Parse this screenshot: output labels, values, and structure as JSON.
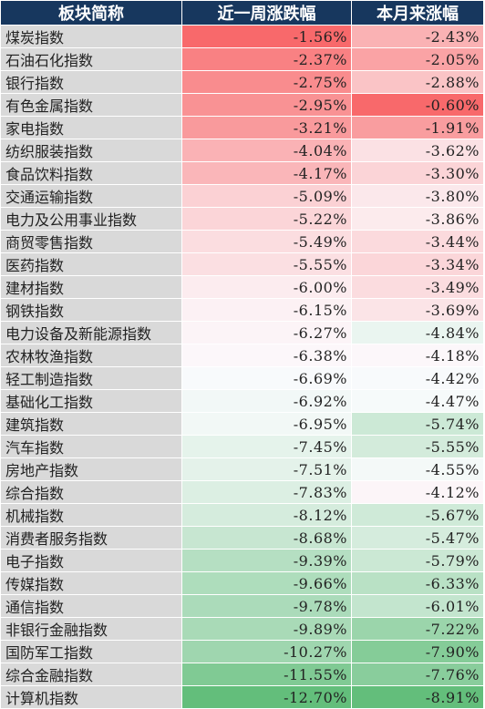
{
  "table": {
    "header_color": "#17375e",
    "name_col_bg": "#d9d9d9",
    "headers": [
      "板块简称",
      "近一周涨跌幅",
      "本月来涨幅"
    ],
    "rows": [
      {
        "name": "煤炭指数",
        "week": "-1.56%",
        "month": "-2.43%",
        "week_val": -1.56,
        "month_val": -2.43
      },
      {
        "name": "石油石化指数",
        "week": "-2.37%",
        "month": "-2.05%",
        "week_val": -2.37,
        "month_val": -2.05
      },
      {
        "name": "银行指数",
        "week": "-2.75%",
        "month": "-2.88%",
        "week_val": -2.75,
        "month_val": -2.88
      },
      {
        "name": "有色金属指数",
        "week": "-2.95%",
        "month": "-0.60%",
        "week_val": -2.95,
        "month_val": -0.6
      },
      {
        "name": "家电指数",
        "week": "-3.21%",
        "month": "-1.91%",
        "week_val": -3.21,
        "month_val": -1.91
      },
      {
        "name": "纺织服装指数",
        "week": "-4.04%",
        "month": "-3.62%",
        "week_val": -4.04,
        "month_val": -3.62
      },
      {
        "name": "食品饮料指数",
        "week": "-4.17%",
        "month": "-3.30%",
        "week_val": -4.17,
        "month_val": -3.3
      },
      {
        "name": "交通运输指数",
        "week": "-5.09%",
        "month": "-3.80%",
        "week_val": -5.09,
        "month_val": -3.8
      },
      {
        "name": "电力及公用事业指数",
        "week": "-5.22%",
        "month": "-3.86%",
        "week_val": -5.22,
        "month_val": -3.86
      },
      {
        "name": "商贸零售指数",
        "week": "-5.49%",
        "month": "-3.44%",
        "week_val": -5.49,
        "month_val": -3.44
      },
      {
        "name": "医药指数",
        "week": "-5.55%",
        "month": "-3.34%",
        "week_val": -5.55,
        "month_val": -3.34
      },
      {
        "name": "建材指数",
        "week": "-6.00%",
        "month": "-3.49%",
        "week_val": -6.0,
        "month_val": -3.49
      },
      {
        "name": "钢铁指数",
        "week": "-6.15%",
        "month": "-3.69%",
        "week_val": -6.15,
        "month_val": -3.69
      },
      {
        "name": "电力设备及新能源指数",
        "week": "-6.27%",
        "month": "-4.84%",
        "week_val": -6.27,
        "month_val": -4.84
      },
      {
        "name": "农林牧渔指数",
        "week": "-6.38%",
        "month": "-4.18%",
        "week_val": -6.38,
        "month_val": -4.18
      },
      {
        "name": "轻工制造指数",
        "week": "-6.69%",
        "month": "-4.42%",
        "week_val": -6.69,
        "month_val": -4.42
      },
      {
        "name": "基础化工指数",
        "week": "-6.92%",
        "month": "-4.47%",
        "week_val": -6.92,
        "month_val": -4.47
      },
      {
        "name": "建筑指数",
        "week": "-6.95%",
        "month": "-5.74%",
        "week_val": -6.95,
        "month_val": -5.74
      },
      {
        "name": "汽车指数",
        "week": "-7.45%",
        "month": "-5.55%",
        "week_val": -7.45,
        "month_val": -5.55
      },
      {
        "name": "房地产指数",
        "week": "-7.51%",
        "month": "-4.55%",
        "week_val": -7.51,
        "month_val": -4.55
      },
      {
        "name": "综合指数",
        "week": "-7.83%",
        "month": "-4.12%",
        "week_val": -7.83,
        "month_val": -4.12
      },
      {
        "name": "机械指数",
        "week": "-8.12%",
        "month": "-5.67%",
        "week_val": -8.12,
        "month_val": -5.67
      },
      {
        "name": "消费者服务指数",
        "week": "-8.68%",
        "month": "-5.47%",
        "week_val": -8.68,
        "month_val": -5.47
      },
      {
        "name": "电子指数",
        "week": "-9.39%",
        "month": "-5.79%",
        "week_val": -9.39,
        "month_val": -5.79
      },
      {
        "name": "传媒指数",
        "week": "-9.66%",
        "month": "-6.33%",
        "week_val": -9.66,
        "month_val": -6.33
      },
      {
        "name": "通信指数",
        "week": "-9.78%",
        "month": "-6.01%",
        "week_val": -9.78,
        "month_val": -6.01
      },
      {
        "name": "非银行金融指数",
        "week": "-9.89%",
        "month": "-7.22%",
        "week_val": -9.89,
        "month_val": -7.22
      },
      {
        "name": "国防军工指数",
        "week": "-10.27%",
        "month": "-7.90%",
        "week_val": -10.27,
        "month_val": -7.9
      },
      {
        "name": "综合金融指数",
        "week": "-11.55%",
        "month": "-7.76%",
        "week_val": -11.55,
        "month_val": -7.76
      },
      {
        "name": "计算机指数",
        "week": "-12.70%",
        "month": "-8.91%",
        "week_val": -12.7,
        "month_val": -8.91
      }
    ]
  }
}
